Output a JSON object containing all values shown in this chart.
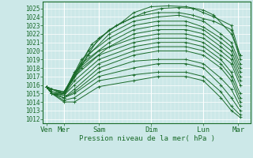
{
  "bg_color": "#cce8e8",
  "grid_color_major": "#aacccc",
  "grid_color_minor": "#bbdddd",
  "line_color": "#1a6b2a",
  "ylabel": "Pression niveau de la mer( hPa )",
  "ylim": [
    1011.5,
    1025.8
  ],
  "yticks": [
    1012,
    1013,
    1014,
    1015,
    1016,
    1017,
    1018,
    1019,
    1020,
    1021,
    1022,
    1023,
    1024,
    1025
  ],
  "xtick_labels": [
    "Ven",
    "Mer",
    "Sam",
    "Dim",
    "Lun",
    "Mar"
  ],
  "xtick_positions": [
    0,
    0.5,
    1.5,
    3.0,
    4.5,
    5.5
  ],
  "xlim": [
    -0.1,
    5.85
  ],
  "lines": [
    [
      0.0,
      1015.8,
      0.15,
      1015.5,
      0.5,
      1015.2,
      1.5,
      1021.5,
      2.2,
      1023.5,
      2.5,
      1024.5,
      3.0,
      1025.2,
      3.5,
      1025.3,
      4.0,
      1025.2,
      4.5,
      1024.8,
      4.8,
      1024.2,
      5.3,
      1022.0,
      5.55,
      1019.5
    ],
    [
      0.0,
      1015.8,
      0.15,
      1015.5,
      0.5,
      1015.2,
      1.3,
      1020.8,
      2.0,
      1023.0,
      2.8,
      1024.5,
      3.3,
      1025.0,
      3.8,
      1025.1,
      4.2,
      1025.0,
      4.5,
      1024.5,
      4.8,
      1024.0,
      5.3,
      1023.0,
      5.55,
      1019.5
    ],
    [
      0.0,
      1015.8,
      0.15,
      1015.5,
      0.5,
      1015.0,
      1.2,
      1020.0,
      1.8,
      1022.5,
      2.5,
      1024.0,
      3.2,
      1024.5,
      3.8,
      1024.5,
      4.2,
      1024.2,
      4.5,
      1023.8,
      4.8,
      1023.5,
      5.3,
      1022.5,
      5.55,
      1019.0
    ],
    [
      0.0,
      1015.8,
      0.15,
      1015.5,
      0.5,
      1015.0,
      1.2,
      1019.5,
      1.8,
      1022.0,
      2.5,
      1023.5,
      3.2,
      1024.0,
      3.8,
      1024.2,
      4.5,
      1023.5,
      5.0,
      1022.0,
      5.3,
      1021.0,
      5.55,
      1018.5
    ],
    [
      0.0,
      1015.8,
      0.15,
      1015.5,
      0.5,
      1015.0,
      1.0,
      1019.0,
      1.8,
      1021.5,
      2.5,
      1023.0,
      3.2,
      1023.5,
      4.0,
      1023.5,
      4.5,
      1022.8,
      5.0,
      1021.5,
      5.3,
      1020.5,
      5.55,
      1018.0
    ],
    [
      0.0,
      1015.8,
      0.15,
      1015.2,
      0.5,
      1015.0,
      1.0,
      1018.5,
      1.8,
      1021.0,
      2.5,
      1022.5,
      3.2,
      1023.0,
      4.0,
      1023.0,
      4.5,
      1022.5,
      5.0,
      1021.0,
      5.3,
      1020.0,
      5.55,
      1017.5
    ],
    [
      0.0,
      1015.8,
      0.15,
      1015.2,
      0.5,
      1015.0,
      1.0,
      1018.0,
      1.8,
      1020.5,
      2.5,
      1022.0,
      3.2,
      1022.5,
      4.0,
      1022.5,
      4.5,
      1022.0,
      5.0,
      1020.5,
      5.3,
      1019.5,
      5.55,
      1017.0
    ],
    [
      0.0,
      1015.8,
      0.15,
      1015.0,
      0.5,
      1015.0,
      0.8,
      1017.5,
      1.5,
      1020.0,
      2.5,
      1021.5,
      3.2,
      1022.0,
      4.0,
      1022.0,
      4.5,
      1021.5,
      5.0,
      1020.0,
      5.3,
      1019.0,
      5.55,
      1016.5
    ],
    [
      0.0,
      1015.8,
      0.15,
      1015.0,
      0.5,
      1014.8,
      0.8,
      1017.0,
      1.5,
      1019.5,
      2.5,
      1021.0,
      3.2,
      1021.5,
      4.0,
      1021.5,
      4.5,
      1021.0,
      5.0,
      1019.5,
      5.3,
      1018.5,
      5.55,
      1016.0
    ],
    [
      0.0,
      1015.8,
      0.15,
      1015.0,
      0.5,
      1014.8,
      0.8,
      1016.5,
      1.5,
      1019.0,
      2.5,
      1020.5,
      3.2,
      1021.0,
      4.0,
      1021.0,
      4.5,
      1020.5,
      5.0,
      1019.0,
      5.3,
      1017.5,
      5.55,
      1015.0
    ],
    [
      0.0,
      1015.8,
      0.15,
      1015.0,
      0.5,
      1014.8,
      0.8,
      1016.0,
      1.5,
      1018.5,
      2.5,
      1020.0,
      3.2,
      1020.5,
      4.0,
      1020.5,
      4.5,
      1020.0,
      5.0,
      1018.5,
      5.3,
      1017.0,
      5.55,
      1014.5
    ],
    [
      0.0,
      1015.8,
      0.15,
      1015.0,
      0.5,
      1014.5,
      0.8,
      1015.5,
      1.5,
      1018.0,
      2.5,
      1019.5,
      3.2,
      1020.0,
      4.0,
      1020.0,
      4.5,
      1019.5,
      5.0,
      1018.0,
      5.3,
      1016.5,
      5.55,
      1014.0
    ],
    [
      0.0,
      1015.8,
      0.15,
      1015.0,
      0.5,
      1014.5,
      0.8,
      1015.2,
      1.5,
      1017.5,
      2.5,
      1018.8,
      3.2,
      1019.0,
      4.0,
      1019.0,
      4.5,
      1018.5,
      5.0,
      1016.8,
      5.3,
      1015.5,
      5.55,
      1013.5
    ],
    [
      0.0,
      1015.8,
      0.15,
      1015.0,
      0.5,
      1014.5,
      0.8,
      1015.0,
      1.5,
      1017.0,
      2.5,
      1018.0,
      3.2,
      1018.5,
      4.0,
      1018.5,
      4.5,
      1018.0,
      5.0,
      1016.0,
      5.3,
      1014.5,
      5.55,
      1013.0
    ],
    [
      0.0,
      1015.8,
      0.15,
      1015.0,
      0.5,
      1014.2,
      0.8,
      1014.5,
      1.5,
      1016.5,
      2.5,
      1017.2,
      3.2,
      1017.5,
      4.0,
      1017.5,
      4.5,
      1017.0,
      5.0,
      1015.2,
      5.3,
      1013.5,
      5.55,
      1012.5
    ],
    [
      0.0,
      1015.8,
      0.15,
      1015.0,
      0.5,
      1014.0,
      0.8,
      1014.0,
      1.5,
      1015.8,
      2.5,
      1016.5,
      3.2,
      1017.0,
      4.0,
      1017.0,
      4.5,
      1016.5,
      5.0,
      1014.5,
      5.3,
      1013.0,
      5.55,
      1012.2
    ]
  ]
}
